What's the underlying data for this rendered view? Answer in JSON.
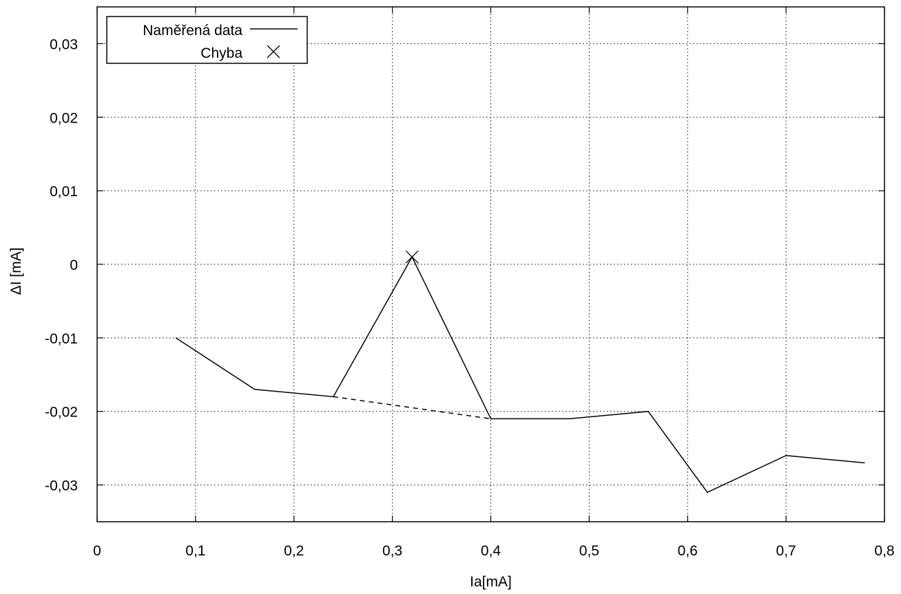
{
  "chart_data": {
    "type": "line",
    "xlabel": "Ia[mA]",
    "ylabel": "ΔI [mA]",
    "xlim": [
      0,
      0.8
    ],
    "ylim": [
      -0.035,
      0.035
    ],
    "x_ticks": [
      0,
      0.1,
      0.2,
      0.3,
      0.4,
      0.5,
      0.6,
      0.7,
      0.8
    ],
    "y_ticks": [
      -0.03,
      -0.02,
      -0.01,
      0,
      0.01,
      0.02,
      0.03
    ],
    "x_tick_labels": [
      "0",
      "0,1",
      "0,2",
      "0,3",
      "0,4",
      "0,5",
      "0,6",
      "0,7",
      "0,8"
    ],
    "y_tick_labels": [
      "-0,03",
      "-0,02",
      "-0,01",
      "0",
      "0,01",
      "0,02",
      "0,03"
    ],
    "grid": true,
    "legend_position": "top-left",
    "series": [
      {
        "name": "Naměřená data",
        "style": "solid",
        "color": "#000000",
        "x": [
          0.08,
          0.16,
          0.24,
          0.32,
          0.4,
          0.48,
          0.56,
          0.62,
          0.7,
          0.78
        ],
        "y": [
          -0.01,
          -0.017,
          -0.018,
          0.001,
          -0.021,
          -0.021,
          -0.02,
          -0.031,
          -0.026,
          -0.027
        ]
      },
      {
        "name": "Chyba",
        "style": "marker-x",
        "color": "#000000",
        "x": [
          0.32
        ],
        "y": [
          0.001
        ]
      },
      {
        "style": "dashed",
        "color": "#000000",
        "x": [
          0.24,
          0.4
        ],
        "y": [
          -0.018,
          -0.021
        ]
      }
    ]
  }
}
